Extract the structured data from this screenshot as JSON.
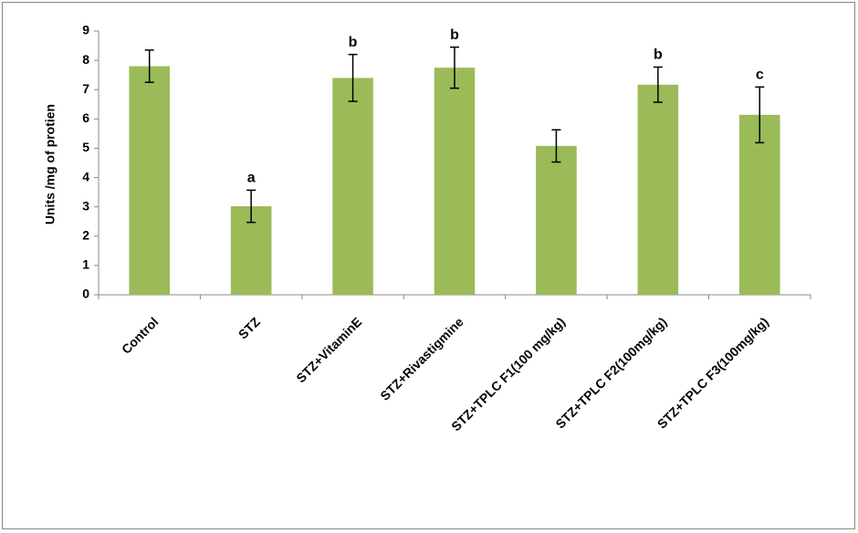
{
  "chart_data": {
    "type": "bar",
    "y_label": "Units /mg  of protien",
    "categories": [
      "Control",
      "STZ",
      "STZ+VitaminE",
      "STZ+Rivastigmine",
      "STZ+TPLC F1(100 mg/kg)",
      "STZ+TPLC F2(100mg/kg)",
      "STZ+TPLC F3(100mg/kg)"
    ],
    "values": [
      7.8,
      3.02,
      7.4,
      7.75,
      5.08,
      7.17,
      6.14
    ],
    "errors": [
      0.55,
      0.55,
      0.8,
      0.7,
      0.55,
      0.6,
      0.95
    ],
    "annotations": [
      null,
      "a",
      "b",
      "b",
      null,
      "b",
      "c"
    ],
    "color": "#9bbb59",
    "ylim": [
      0,
      9
    ],
    "yticks": [
      0,
      1,
      2,
      3,
      4,
      5,
      6,
      7,
      8,
      9
    ],
    "grid": false
  }
}
